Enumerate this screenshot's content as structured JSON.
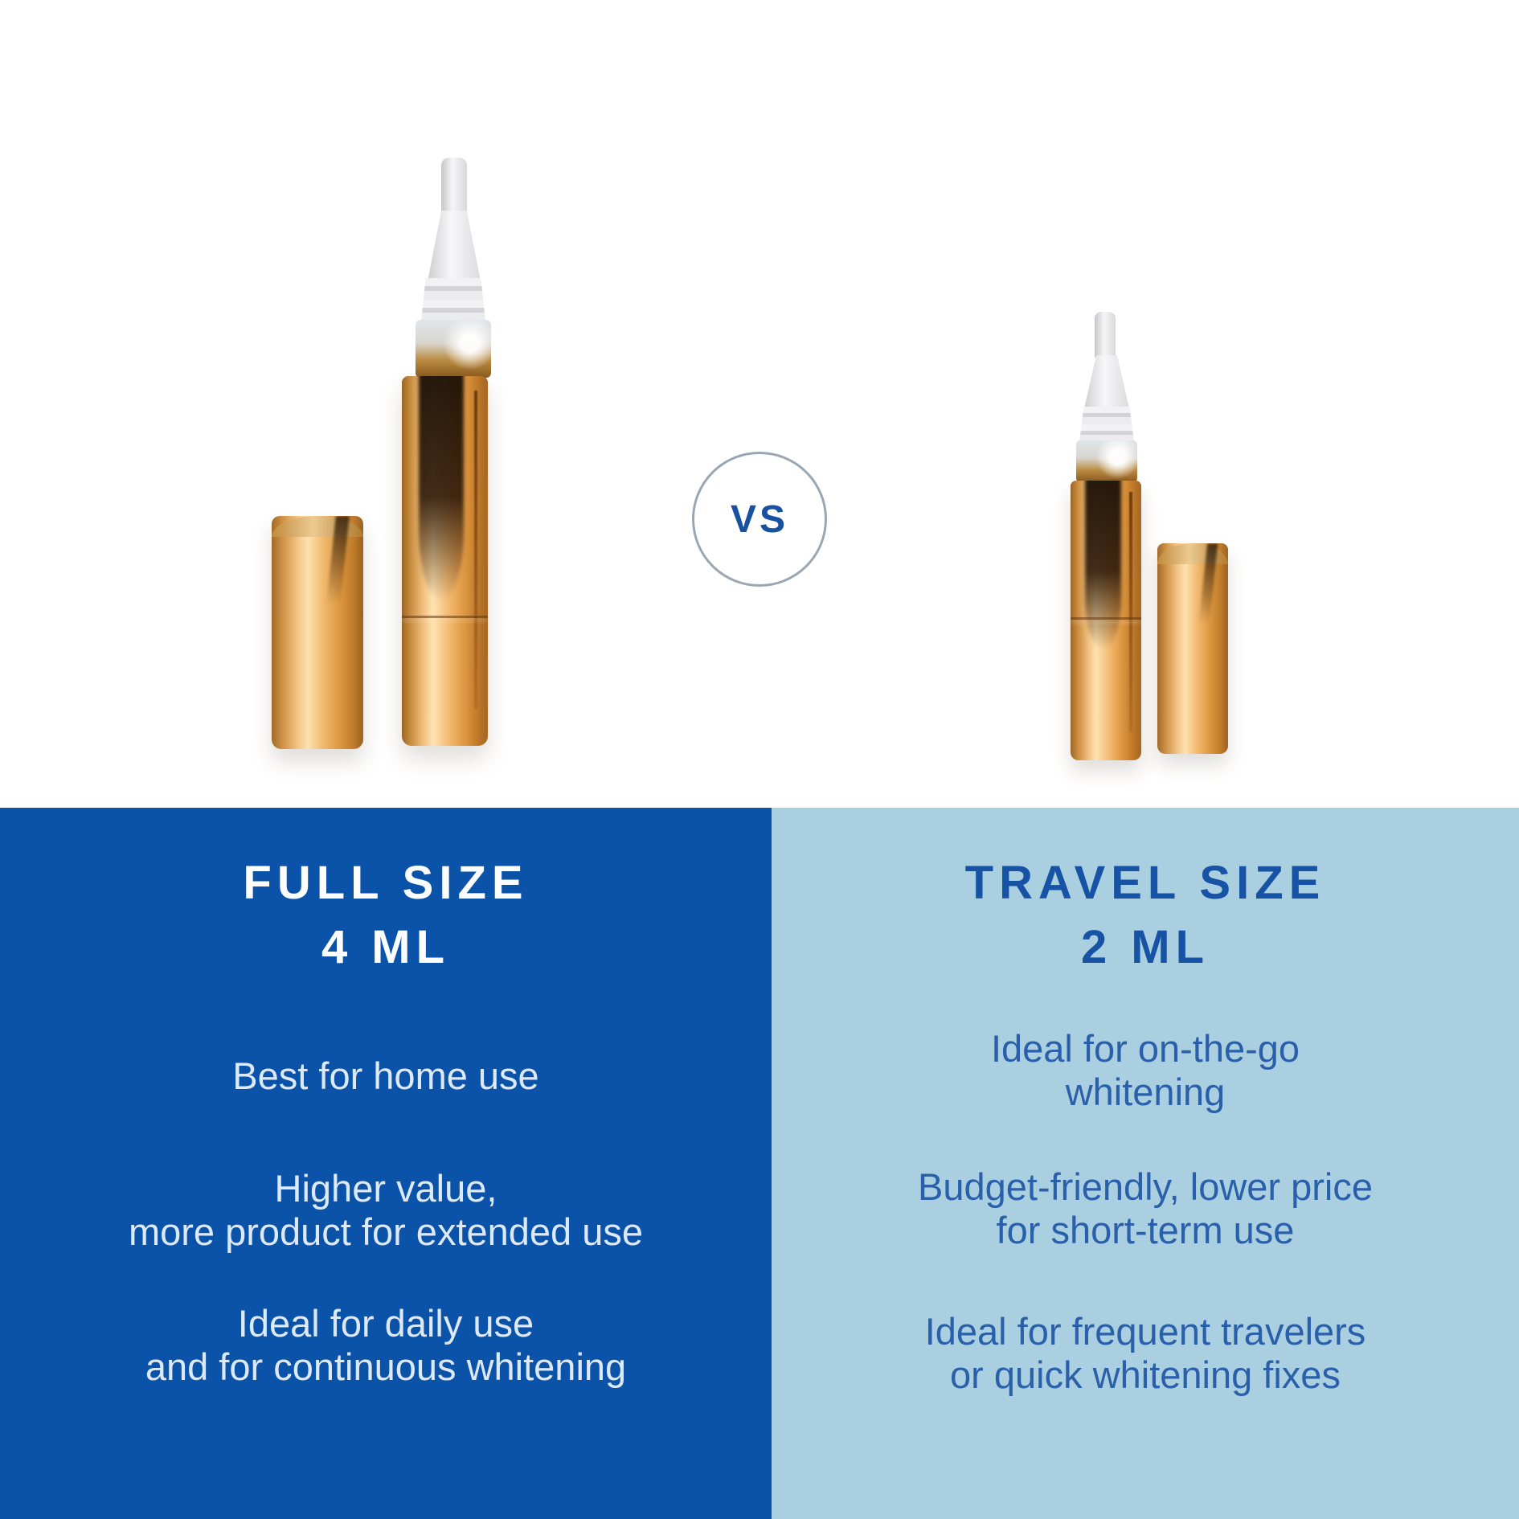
{
  "badge": {
    "label": "VS"
  },
  "colors": {
    "background": "#ffffff",
    "panel_left_bg": "#0b52a9",
    "panel_right_bg": "#a9cfe0",
    "panel_left_title": "#fbfdff",
    "panel_left_text": "#dce9f8",
    "panel_right_title": "#1753a4",
    "panel_right_text": "#2a5fa9",
    "vs_text": "#17519f",
    "vs_ring": "#9aa6b1",
    "pen_gold_highlight": "#fde3b2",
    "pen_gold_mid": "#e8a75c",
    "pen_gold_shadow": "#9c6526",
    "pen_tip_white": "#f2f2f4"
  },
  "products": {
    "left": {
      "description": "full-size whitening pen with cap"
    },
    "right": {
      "description": "travel-size whitening pen with cap"
    }
  },
  "panels": {
    "left": {
      "title_line1": "FULL SIZE",
      "title_line2": "4 ML",
      "features": [
        {
          "lines": [
            "Best for home use"
          ]
        },
        {
          "lines": [
            "Higher value,",
            "more product for extended use"
          ]
        },
        {
          "lines": [
            "Ideal for daily use",
            "and for continuous whitening"
          ]
        }
      ]
    },
    "right": {
      "title_line1": "TRAVEL SIZE",
      "title_line2": "2 ML",
      "features": [
        {
          "lines": [
            "Ideal for on-the-go",
            "whitening"
          ]
        },
        {
          "lines": [
            "Budget-friendly, lower price",
            "for short-term use"
          ]
        },
        {
          "lines": [
            "Ideal for frequent travelers",
            "or quick whitening fixes"
          ]
        }
      ]
    }
  }
}
